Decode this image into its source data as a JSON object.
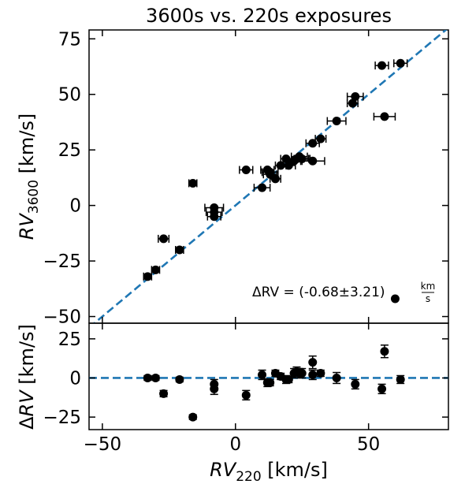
{
  "chart_data": [
    {
      "type": "scatter",
      "panel": "top",
      "title": "3600s vs. 220s exposures",
      "xlabel": "",
      "ylabel": {
        "base": "RV",
        "sub": "3600",
        "unit": " [km/s]"
      },
      "xlim": [
        -55,
        80
      ],
      "ylim": [
        -53,
        79
      ],
      "yticks": [
        -50,
        -25,
        0,
        25,
        50,
        75
      ],
      "xticks": [
        -50,
        0,
        50
      ],
      "grid": false,
      "one_to_one_line": {
        "color": "#1f77b4",
        "style": "dashed"
      },
      "annotation": {
        "prefix": "ΔRV = (-0.68±3.21) ",
        "num": "km",
        "den": "s"
      },
      "points": [
        {
          "x": -33,
          "y": -32,
          "xerr": 1.5
        },
        {
          "x": -30,
          "y": -29,
          "xerr": 1.5
        },
        {
          "x": -27,
          "y": -15,
          "xerr": 2
        },
        {
          "x": -21,
          "y": -20,
          "xerr": 1.5
        },
        {
          "x": -16,
          "y": 10,
          "xerr": 1.5
        },
        {
          "x": -8,
          "y": -1,
          "xerr": 3.5
        },
        {
          "x": -8,
          "y": -3,
          "xerr": 3
        },
        {
          "x": -8,
          "y": -5,
          "xerr": 2.5
        },
        {
          "x": 4,
          "y": 16,
          "xerr": 2.5
        },
        {
          "x": 10,
          "y": 8,
          "xerr": 3
        },
        {
          "x": 12,
          "y": 16,
          "xerr": 2.5
        },
        {
          "x": 13,
          "y": 15,
          "xerr": 3
        },
        {
          "x": 13,
          "y": 14,
          "xerr": 2.5
        },
        {
          "x": 15,
          "y": 12,
          "xerr": 2
        },
        {
          "x": 17,
          "y": 18,
          "xerr": 2
        },
        {
          "x": 19,
          "y": 21,
          "xerr": 2
        },
        {
          "x": 20,
          "y": 18,
          "xerr": 2.5
        },
        {
          "x": 22,
          "y": 20,
          "xerr": 3
        },
        {
          "x": 23,
          "y": 21,
          "xerr": 4.5
        },
        {
          "x": 24,
          "y": 22,
          "xerr": 3
        },
        {
          "x": 25,
          "y": 21,
          "xerr": 3
        },
        {
          "x": 29,
          "y": 28,
          "xerr": 2.5
        },
        {
          "x": 29,
          "y": 20,
          "xerr": 4.5
        },
        {
          "x": 32,
          "y": 30,
          "xerr": 2
        },
        {
          "x": 38,
          "y": 38,
          "xerr": 3.5
        },
        {
          "x": 44,
          "y": 46,
          "xerr": 2
        },
        {
          "x": 45,
          "y": 49,
          "xerr": 3
        },
        {
          "x": 55,
          "y": 63,
          "xerr": 2.5
        },
        {
          "x": 56,
          "y": 40,
          "xerr": 4
        },
        {
          "x": 62,
          "y": 64,
          "xerr": 2.5
        },
        {
          "x": 60,
          "y": -42,
          "xerr": 0
        }
      ]
    },
    {
      "type": "scatter",
      "panel": "bottom",
      "xlabel": {
        "base": "RV",
        "sub": "220",
        "unit": " [km/s]"
      },
      "ylabel": {
        "prefix": "Δ",
        "base": "RV",
        "unit": " [km/s]"
      },
      "xlim": [
        -55,
        80
      ],
      "ylim": [
        -33,
        35
      ],
      "yticks": [
        -25,
        0,
        25
      ],
      "xticks": [
        -50,
        0,
        50
      ],
      "zero_line": {
        "color": "#1f77b4",
        "style": "dashed"
      },
      "points": [
        {
          "x": -33,
          "y": 0,
          "yerr": 1.5
        },
        {
          "x": -30,
          "y": 0,
          "yerr": 1.5
        },
        {
          "x": -27,
          "y": -10,
          "yerr": 2
        },
        {
          "x": -21,
          "y": -1,
          "yerr": 1.5
        },
        {
          "x": -16,
          "y": -25,
          "yerr": 1.5
        },
        {
          "x": -8,
          "y": -4,
          "yerr": 3
        },
        {
          "x": -8,
          "y": -7,
          "yerr": 3.5
        },
        {
          "x": 4,
          "y": -11,
          "yerr": 3
        },
        {
          "x": 10,
          "y": 2,
          "yerr": 3
        },
        {
          "x": 12,
          "y": -3,
          "yerr": 2.5
        },
        {
          "x": 13,
          "y": -3,
          "yerr": 2
        },
        {
          "x": 15,
          "y": 3,
          "yerr": 2
        },
        {
          "x": 17,
          "y": 1,
          "yerr": 2
        },
        {
          "x": 19,
          "y": -1,
          "yerr": 2.5
        },
        {
          "x": 20,
          "y": -1,
          "yerr": 2
        },
        {
          "x": 22,
          "y": 3,
          "yerr": 3
        },
        {
          "x": 23,
          "y": 4,
          "yerr": 3
        },
        {
          "x": 24,
          "y": 3,
          "yerr": 3
        },
        {
          "x": 25,
          "y": 3,
          "yerr": 3
        },
        {
          "x": 29,
          "y": 10,
          "yerr": 4
        },
        {
          "x": 29,
          "y": 2,
          "yerr": 3
        },
        {
          "x": 32,
          "y": 3,
          "yerr": 2
        },
        {
          "x": 38,
          "y": 0,
          "yerr": 3.5
        },
        {
          "x": 45,
          "y": -4,
          "yerr": 3
        },
        {
          "x": 55,
          "y": -7,
          "yerr": 3
        },
        {
          "x": 56,
          "y": 17,
          "yerr": 4
        },
        {
          "x": 62,
          "y": -1,
          "yerr": 2.5
        }
      ]
    }
  ]
}
